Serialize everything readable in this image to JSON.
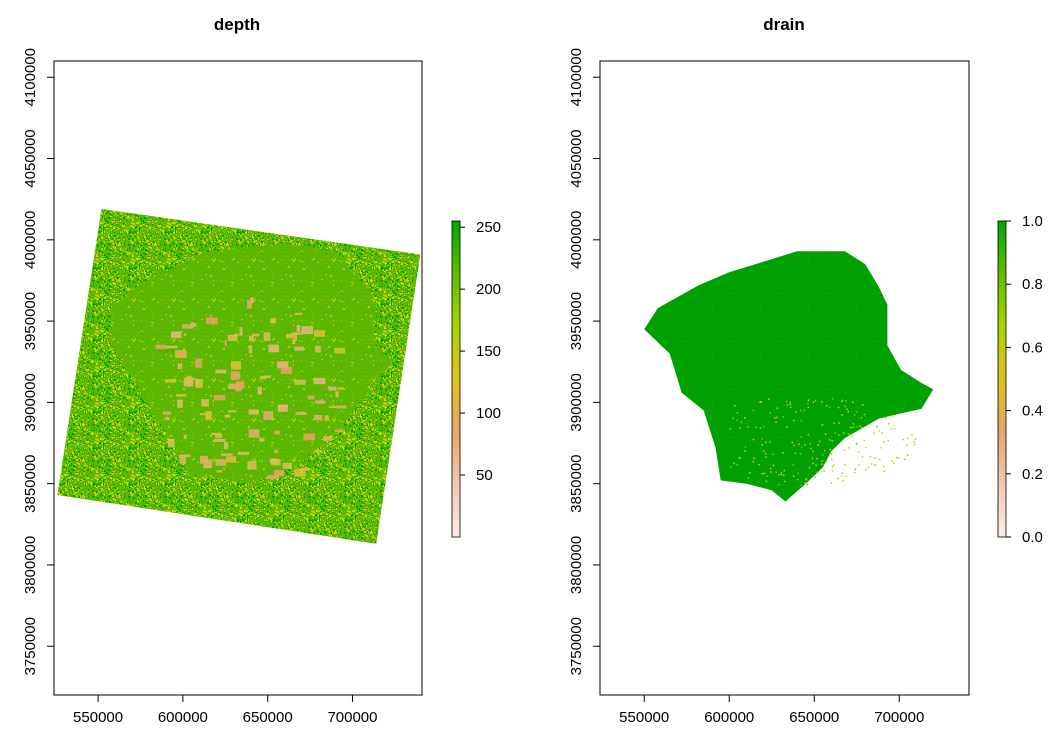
{
  "chart_data": [
    {
      "type": "heatmap",
      "title": "depth",
      "xlim": [
        524000,
        741000
      ],
      "ylim": [
        3720000,
        4110000
      ],
      "x_ticks": [
        550000,
        600000,
        650000,
        700000
      ],
      "y_ticks": [
        3750000,
        3800000,
        3850000,
        3900000,
        3950000,
        4000000,
        4050000,
        4100000
      ],
      "x_tick_labels": [
        "550000",
        "600000",
        "650000",
        "700000"
      ],
      "y_tick_labels": [
        "3750000",
        "3800000",
        "3850000",
        "3900000",
        "3950000",
        "4000000",
        "4050000",
        "4100000"
      ],
      "legend": {
        "range": [
          0,
          255
        ],
        "ticks": [
          50,
          100,
          150,
          200,
          250
        ],
        "tick_labels": [
          "50",
          "100",
          "150",
          "200",
          "250"
        ],
        "colors": [
          "#fdecea",
          "#f2c9b4",
          "#e7a56a",
          "#e0c020",
          "#a8d400",
          "#5fbd00",
          "#00a600"
        ]
      },
      "raster_outline": [
        [
          552000,
          4019000
        ],
        [
          740000,
          3991000
        ],
        [
          714000,
          3813000
        ],
        [
          526000,
          3843000
        ]
      ],
      "inner_region_outline": [
        [
          612000,
          3992000
        ],
        [
          660000,
          3998000
        ],
        [
          690000,
          3993000
        ],
        [
          702000,
          3978000
        ],
        [
          714000,
          3962000
        ],
        [
          712000,
          3935000
        ],
        [
          724000,
          3925000
        ],
        [
          708000,
          3905000
        ],
        [
          690000,
          3880000
        ],
        [
          665000,
          3860000
        ],
        [
          640000,
          3850000
        ],
        [
          605000,
          3856000
        ],
        [
          588000,
          3885000
        ],
        [
          570000,
          3915000
        ],
        [
          558000,
          3935000
        ],
        [
          557000,
          3958000
        ],
        [
          575000,
          3973000
        ]
      ]
    },
    {
      "type": "heatmap",
      "title": "drain",
      "xlim": [
        524000,
        741000
      ],
      "ylim": [
        3720000,
        4110000
      ],
      "x_ticks": [
        550000,
        600000,
        650000,
        700000
      ],
      "y_ticks": [
        3750000,
        3800000,
        3850000,
        3900000,
        3950000,
        4000000,
        4050000,
        4100000
      ],
      "x_tick_labels": [
        "550000",
        "600000",
        "650000",
        "700000"
      ],
      "y_tick_labels": [
        "3750000",
        "3800000",
        "3850000",
        "3900000",
        "3950000",
        "4000000",
        "4050000",
        "4100000"
      ],
      "legend": {
        "range": [
          0,
          1
        ],
        "ticks": [
          0,
          0.2,
          0.4,
          0.6,
          0.8,
          1
        ],
        "tick_labels": [
          "0.0",
          "0.2",
          "0.4",
          "0.6",
          "0.8",
          "1.0"
        ],
        "colors": [
          "#fdecea",
          "#f2c9b4",
          "#e7a56a",
          "#e0c020",
          "#a8d400",
          "#5fbd00",
          "#00a600"
        ]
      },
      "region_outline": [
        [
          600000,
          3980000
        ],
        [
          640000,
          3993000
        ],
        [
          668000,
          3993000
        ],
        [
          680000,
          3985000
        ],
        [
          688000,
          3971000
        ],
        [
          693000,
          3960000
        ],
        [
          693000,
          3935000
        ],
        [
          701000,
          3920000
        ],
        [
          713000,
          3912000
        ],
        [
          720000,
          3908000
        ],
        [
          713000,
          3896000
        ],
        [
          700000,
          3893000
        ],
        [
          688000,
          3890000
        ],
        [
          668000,
          3878000
        ],
        [
          660000,
          3870000
        ],
        [
          655000,
          3860000
        ],
        [
          645000,
          3850000
        ],
        [
          633000,
          3839000
        ],
        [
          625000,
          3846000
        ],
        [
          610000,
          3850000
        ],
        [
          595000,
          3852000
        ],
        [
          592000,
          3872000
        ],
        [
          585000,
          3895000
        ],
        [
          572000,
          3906000
        ],
        [
          565000,
          3930000
        ],
        [
          550000,
          3945000
        ],
        [
          558000,
          3958000
        ],
        [
          582000,
          3972000
        ]
      ]
    }
  ]
}
